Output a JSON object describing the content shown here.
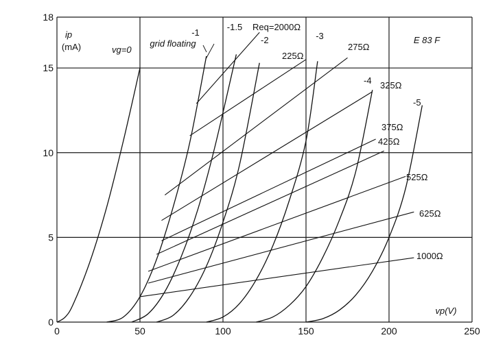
{
  "chart_data": {
    "type": "line",
    "tube": "E 83 F",
    "x_axis": {
      "label": "vp(V)",
      "range": [
        0,
        250
      ],
      "ticks": [
        "0",
        "50",
        "100",
        "150",
        "200",
        "250"
      ]
    },
    "y_axis": {
      "label_top": "ip",
      "label_unit": "(mA)",
      "range": [
        0,
        18
      ],
      "ticks": [
        "0",
        "5",
        "10",
        "15",
        "18"
      ]
    },
    "grid": true,
    "grid_floating_label": "grid floating",
    "series": [
      {
        "name": "vg=0",
        "kind": "grid_voltage",
        "x": [
          0,
          5,
          10,
          20,
          30,
          40,
          50
        ],
        "y": [
          0,
          0.3,
          1.1,
          3.6,
          6.8,
          10.7,
          15
        ]
      },
      {
        "name": "-1",
        "kind": "grid_voltage",
        "x": [
          30,
          40,
          50,
          60,
          70,
          80,
          90
        ],
        "y": [
          0,
          0.3,
          1.5,
          3.7,
          6.8,
          10.6,
          15.7
        ]
      },
      {
        "name": "-1.5",
        "kind": "grid_voltage",
        "x": [
          45,
          55,
          65,
          75,
          85,
          95,
          108
        ],
        "y": [
          0,
          0.5,
          1.8,
          3.9,
          6.7,
          10.3,
          15.8
        ]
      },
      {
        "name": "-2",
        "kind": "grid_voltage",
        "x": [
          60,
          70,
          80,
          90,
          100,
          110,
          122
        ],
        "y": [
          0,
          0.4,
          1.5,
          3.3,
          5.9,
          9.3,
          15.3
        ]
      },
      {
        "name": "-3",
        "kind": "grid_voltage",
        "x": [
          90,
          100,
          110,
          120,
          130,
          140,
          150,
          157
        ],
        "y": [
          0,
          0.3,
          1.1,
          2.5,
          4.5,
          7.2,
          10.7,
          15.4
        ]
      },
      {
        "name": "-4",
        "kind": "grid_voltage",
        "x": [
          120,
          130,
          140,
          150,
          160,
          170,
          180,
          190
        ],
        "y": [
          0,
          0.3,
          1.0,
          2.1,
          3.8,
          6.0,
          8.9,
          13.7
        ]
      },
      {
        "name": "-5",
        "kind": "grid_voltage",
        "x": [
          150,
          160,
          170,
          180,
          190,
          200,
          210,
          220
        ],
        "y": [
          0,
          0.2,
          0.7,
          1.6,
          3.0,
          5.0,
          7.9,
          12.8
        ]
      }
    ],
    "load_lines": [
      {
        "name": "Req=2000Ω",
        "x": [
          84,
          122
        ],
        "y": [
          12.9,
          17.1
        ]
      },
      {
        "name": "225Ω",
        "x": [
          80,
          150
        ],
        "y": [
          11.0,
          15.5
        ]
      },
      {
        "name": "275Ω",
        "x": [
          65,
          175
        ],
        "y": [
          7.5,
          15.6
        ]
      },
      {
        "name": "325Ω",
        "x": [
          63,
          190
        ],
        "y": [
          6.0,
          13.6
        ]
      },
      {
        "name": "375Ω",
        "x": [
          63,
          192
        ],
        "y": [
          4.8,
          10.8
        ]
      },
      {
        "name": "425Ω",
        "x": [
          60,
          197
        ],
        "y": [
          4.0,
          10.1
        ]
      },
      {
        "name": "525Ω",
        "x": [
          55,
          210
        ],
        "y": [
          3.0,
          8.6
        ]
      },
      {
        "name": "625Ω",
        "x": [
          55,
          215
        ],
        "y": [
          2.3,
          6.5
        ]
      },
      {
        "name": "1000Ω",
        "x": [
          50,
          215
        ],
        "y": [
          1.5,
          3.8
        ]
      }
    ]
  }
}
